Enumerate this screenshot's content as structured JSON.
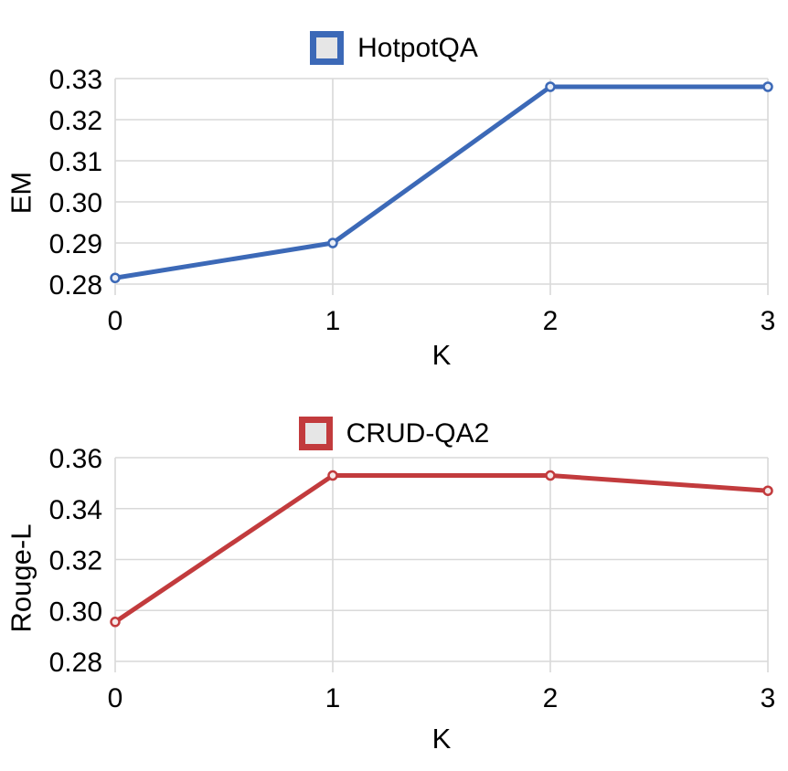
{
  "colors": {
    "background": "#ffffff",
    "grid": "#d9d9d9",
    "text": "#000000",
    "legend_swatch_fill": "#e6e6e6"
  },
  "chart_data": [
    {
      "type": "line",
      "legend_label": "HotpotQA",
      "xlabel": "K",
      "ylabel": "EM",
      "x": [
        0,
        1,
        2,
        3
      ],
      "y": [
        0.2815,
        0.29,
        0.328,
        0.328
      ],
      "xticks": [
        0,
        1,
        2,
        3
      ],
      "xtick_labels": [
        "0",
        "1",
        "2",
        "3"
      ],
      "yticks": [
        0.28,
        0.29,
        0.3,
        0.31,
        0.32,
        0.33
      ],
      "ytick_labels": [
        "0.28",
        "0.29",
        "0.30",
        "0.31",
        "0.32",
        "0.33"
      ],
      "xlim": [
        0,
        3
      ],
      "ylim": [
        0.28,
        0.33
      ],
      "grid": true,
      "legend_position": "top-center",
      "line_color": "#3C69B7",
      "marker": "circle-open",
      "marker_fill": "#e9eef7"
    },
    {
      "type": "line",
      "legend_label": "CRUD-QA2",
      "xlabel": "K",
      "ylabel": "Rouge-L",
      "x": [
        0,
        1,
        2,
        3
      ],
      "y": [
        0.2955,
        0.353,
        0.353,
        0.347
      ],
      "xticks": [
        0,
        1,
        2,
        3
      ],
      "xtick_labels": [
        "0",
        "1",
        "2",
        "3"
      ],
      "yticks": [
        0.28,
        0.3,
        0.32,
        0.34,
        0.36
      ],
      "ytick_labels": [
        "0.28",
        "0.30",
        "0.32",
        "0.34",
        "0.36"
      ],
      "xlim": [
        0,
        3
      ],
      "ylim": [
        0.28,
        0.36
      ],
      "grid": true,
      "legend_position": "top-center",
      "line_color": "#C23B3D",
      "marker": "circle-open",
      "marker_fill": "#f6e9e9"
    }
  ]
}
